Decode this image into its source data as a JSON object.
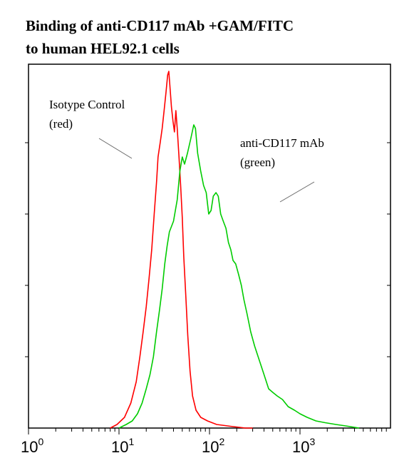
{
  "chart_data": {
    "type": "line",
    "title_lines": [
      "Binding of anti-CD117 mAb +GAM/FITC",
      "to human HEL92.1 cells"
    ],
    "x_scale": "log",
    "xlim": [
      1,
      10000
    ],
    "ylim": [
      0,
      1
    ],
    "x_ticks": [
      {
        "value": 1,
        "base": "10",
        "exp": "0"
      },
      {
        "value": 10,
        "base": "10",
        "exp": "1"
      },
      {
        "value": 100,
        "base": "10",
        "exp": "2"
      },
      {
        "value": 1000,
        "base": "10",
        "exp": "3"
      }
    ],
    "y_ticks": [
      0.2,
      0.4,
      0.6,
      0.8
    ],
    "grid": false,
    "series": [
      {
        "name": "Isotype Control",
        "color": "#ff0000",
        "annotation_lines": [
          "Isotype Control",
          "(red)"
        ],
        "points": [
          [
            8.0,
            0.0
          ],
          [
            9.5,
            0.01
          ],
          [
            11.5,
            0.03
          ],
          [
            13.5,
            0.07
          ],
          [
            15.5,
            0.13
          ],
          [
            17.0,
            0.2
          ],
          [
            18.5,
            0.27
          ],
          [
            20.0,
            0.34
          ],
          [
            21.5,
            0.42
          ],
          [
            23.0,
            0.5
          ],
          [
            24.5,
            0.6
          ],
          [
            26.0,
            0.69
          ],
          [
            27.0,
            0.76
          ],
          [
            28.5,
            0.8
          ],
          [
            30.0,
            0.84
          ],
          [
            31.5,
            0.89
          ],
          [
            33.0,
            0.94
          ],
          [
            34.5,
            0.99
          ],
          [
            35.5,
            1.0
          ],
          [
            36.5,
            0.96
          ],
          [
            38.0,
            0.9
          ],
          [
            39.5,
            0.86
          ],
          [
            41.0,
            0.83
          ],
          [
            42.5,
            0.89
          ],
          [
            44.0,
            0.84
          ],
          [
            46.0,
            0.76
          ],
          [
            48.0,
            0.68
          ],
          [
            50.0,
            0.59
          ],
          [
            52.0,
            0.48
          ],
          [
            54.5,
            0.38
          ],
          [
            57.5,
            0.26
          ],
          [
            61.0,
            0.16
          ],
          [
            65.0,
            0.09
          ],
          [
            71.0,
            0.05
          ],
          [
            80.0,
            0.03
          ],
          [
            95.0,
            0.02
          ],
          [
            120.0,
            0.01
          ],
          [
            170.0,
            0.005
          ],
          [
            250.0,
            0.0
          ],
          [
            300.0,
            0.0
          ]
        ]
      },
      {
        "name": "anti-CD117 mAb",
        "color": "#00cc00",
        "annotation_lines": [
          "anti-CD117 mAb",
          "(green)"
        ],
        "points": [
          [
            10.0,
            0.0
          ],
          [
            12.0,
            0.01
          ],
          [
            14.0,
            0.02
          ],
          [
            16.0,
            0.04
          ],
          [
            18.0,
            0.07
          ],
          [
            20.0,
            0.11
          ],
          [
            22.0,
            0.15
          ],
          [
            24.0,
            0.2
          ],
          [
            26.0,
            0.27
          ],
          [
            28.0,
            0.33
          ],
          [
            30.0,
            0.39
          ],
          [
            32.0,
            0.46
          ],
          [
            34.0,
            0.51
          ],
          [
            36.0,
            0.55
          ],
          [
            40.0,
            0.58
          ],
          [
            44.0,
            0.64
          ],
          [
            47.0,
            0.72
          ],
          [
            50.0,
            0.76
          ],
          [
            53.0,
            0.74
          ],
          [
            57.0,
            0.77
          ],
          [
            62.0,
            0.81
          ],
          [
            67.0,
            0.85
          ],
          [
            70.0,
            0.84
          ],
          [
            74.0,
            0.77
          ],
          [
            80.0,
            0.72
          ],
          [
            86.0,
            0.68
          ],
          [
            92.0,
            0.66
          ],
          [
            98.0,
            0.6
          ],
          [
            104.0,
            0.61
          ],
          [
            110.0,
            0.65
          ],
          [
            118.0,
            0.66
          ],
          [
            125.0,
            0.65
          ],
          [
            133.0,
            0.6
          ],
          [
            142.0,
            0.58
          ],
          [
            152.0,
            0.56
          ],
          [
            162.0,
            0.52
          ],
          [
            172.0,
            0.5
          ],
          [
            182.0,
            0.47
          ],
          [
            195.0,
            0.46
          ],
          [
            210.0,
            0.43
          ],
          [
            225.0,
            0.4
          ],
          [
            240.0,
            0.36
          ],
          [
            260.0,
            0.32
          ],
          [
            285.0,
            0.27
          ],
          [
            315.0,
            0.23
          ],
          [
            355.0,
            0.19
          ],
          [
            400.0,
            0.15
          ],
          [
            450.0,
            0.11
          ],
          [
            500.0,
            0.1
          ],
          [
            560.0,
            0.09
          ],
          [
            640.0,
            0.08
          ],
          [
            740.0,
            0.06
          ],
          [
            870.0,
            0.05
          ],
          [
            1000.0,
            0.04
          ],
          [
            1200.0,
            0.03
          ],
          [
            1500.0,
            0.02
          ],
          [
            1900.0,
            0.015
          ],
          [
            2500.0,
            0.01
          ],
          [
            3400.0,
            0.005
          ],
          [
            4500.0,
            0.0
          ]
        ]
      }
    ]
  }
}
